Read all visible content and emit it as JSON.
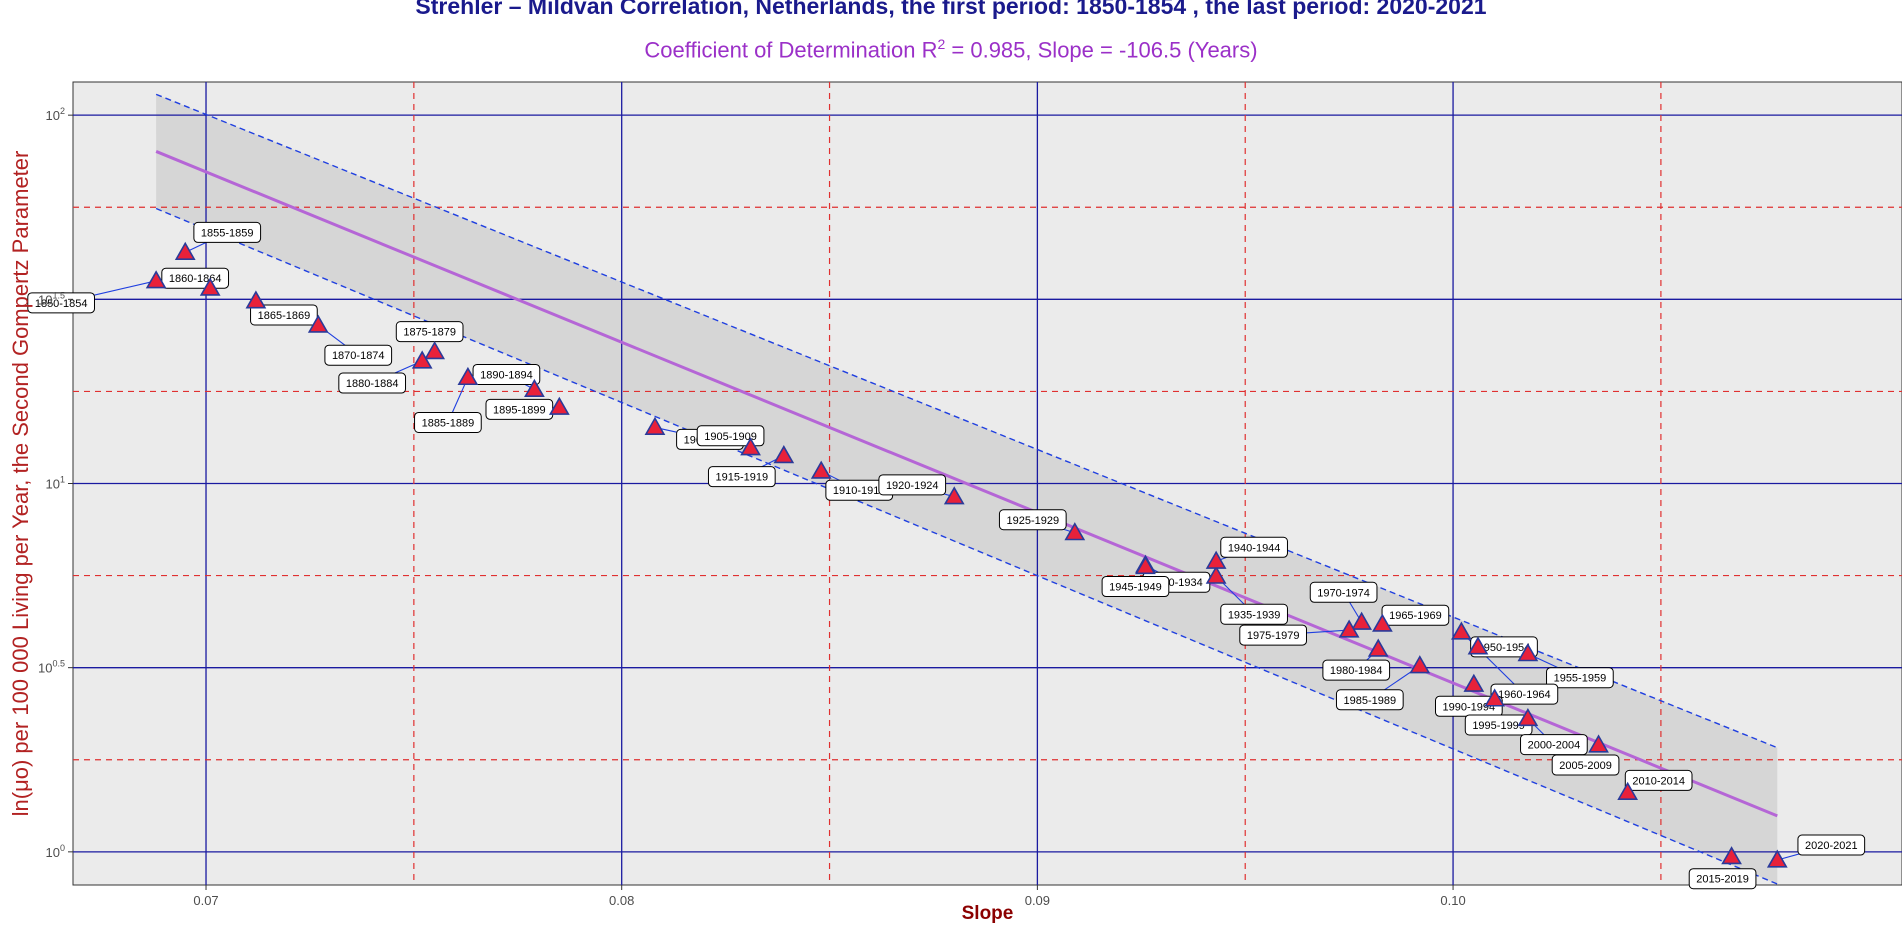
{
  "title": "Strehler – Mildvan Correlation, Netherlands,  the first period:  1850-1854 , the last period:  2020-2021",
  "subtitle": {
    "prefix": "Coefficient of Determination R",
    "sup": "2",
    "suffix": " = 0.985, Slope = -106.5  (Years)"
  },
  "colors": {
    "title": "#1a1a8c",
    "subtitle": "#9b30c8",
    "panel": "#ebebeb",
    "band": "#d6d6d6",
    "fit_line": "#b566d6",
    "band_border": "#1f3fe0",
    "major_grid": "#1a1aa0",
    "minor_grid": "#e03030",
    "marker_fill": "#e8213a",
    "marker_edge": "#2a3a9a",
    "x_title": "#8b0000",
    "y_title": "#b22222"
  },
  "chart_data": {
    "type": "scatter",
    "xlabel": "Slope",
    "ylabel": "ln(μo) per 100 000 Living per Year, the Second Gompertz Parameter",
    "xlim": [
      0.0668,
      0.1108
    ],
    "y_scale": "log10",
    "ylim_log10": [
      -0.09,
      2.09
    ],
    "x_ticks": [
      {
        "value": 0.07,
        "label": "0.07"
      },
      {
        "value": 0.08,
        "label": "0.08"
      },
      {
        "value": 0.09,
        "label": "0.09"
      },
      {
        "value": 0.1,
        "label": "0.10"
      }
    ],
    "y_ticks": [
      {
        "log": 0,
        "base": "10",
        "exp": "0"
      },
      {
        "log": 0.5,
        "base": "10",
        "exp": "0.5"
      },
      {
        "log": 1,
        "base": "10",
        "exp": "1"
      },
      {
        "log": 1.5,
        "base": "10",
        "exp": "1.5"
      },
      {
        "log": 2,
        "base": "10",
        "exp": "2"
      }
    ],
    "minor_x": [
      0.075,
      0.085,
      0.095,
      0.105
    ],
    "minor_y_log10": [
      0.25,
      0.75,
      1.25,
      1.75
    ],
    "fit": {
      "slope_log10_per_unit_x": -46.25,
      "intercept_log10": 5.0835,
      "x_range": [
        0.0688,
        0.1078
      ]
    },
    "band": {
      "halfwidth_start_log10": 0.155,
      "halfwidth_end_log10": 0.185
    },
    "points": [
      {
        "label": "1850-1854",
        "x": 0.0688,
        "y": 35.5
      },
      {
        "label": "1855-1859",
        "x": 0.0695,
        "y": 42.4
      },
      {
        "label": "1860-1864",
        "x": 0.0701,
        "y": 33.9
      },
      {
        "label": "1865-1869",
        "x": 0.0712,
        "y": 31.3
      },
      {
        "label": "1870-1874",
        "x": 0.0727,
        "y": 26.9
      },
      {
        "label": "1875-1879",
        "x": 0.0755,
        "y": 22.8
      },
      {
        "label": "1880-1884",
        "x": 0.0752,
        "y": 21.5
      },
      {
        "label": "1885-1889",
        "x": 0.0763,
        "y": 19.4
      },
      {
        "label": "1890-1894",
        "x": 0.0779,
        "y": 18.0
      },
      {
        "label": "1895-1899",
        "x": 0.0785,
        "y": 16.1
      },
      {
        "label": "1900-1904",
        "x": 0.0808,
        "y": 14.2
      },
      {
        "label": "1905-1909",
        "x": 0.0831,
        "y": 12.5
      },
      {
        "label": "1910-1914",
        "x": 0.0848,
        "y": 10.8
      },
      {
        "label": "1915-1919",
        "x": 0.0839,
        "y": 11.9
      },
      {
        "label": "1920-1924",
        "x": 0.088,
        "y": 9.2
      },
      {
        "label": "1925-1929",
        "x": 0.0909,
        "y": 7.35
      },
      {
        "label": "1930-1934",
        "x": 0.0926,
        "y": 6.0
      },
      {
        "label": "1935-1939",
        "x": 0.0943,
        "y": 5.6
      },
      {
        "label": "1940-1944",
        "x": 0.0943,
        "y": 6.15
      },
      {
        "label": "1945-1949",
        "x": 0.0926,
        "y": 5.95
      },
      {
        "label": "1950-1954",
        "x": 0.1006,
        "y": 3.6
      },
      {
        "label": "1955-1959",
        "x": 0.1018,
        "y": 3.45
      },
      {
        "label": "1960-1964",
        "x": 0.1002,
        "y": 3.95
      },
      {
        "label": "1965-1969",
        "x": 0.0983,
        "y": 4.15
      },
      {
        "label": "1970-1974",
        "x": 0.0978,
        "y": 4.2
      },
      {
        "label": "1975-1979",
        "x": 0.0975,
        "y": 4.0
      },
      {
        "label": "1980-1984",
        "x": 0.0982,
        "y": 3.55
      },
      {
        "label": "1985-1989",
        "x": 0.0992,
        "y": 3.2
      },
      {
        "label": "1990-1994",
        "x": 0.1005,
        "y": 2.85
      },
      {
        "label": "1995-1999",
        "x": 0.101,
        "y": 2.6
      },
      {
        "label": "2000-2004",
        "x": 0.1018,
        "y": 2.3
      },
      {
        "label": "2005-2009",
        "x": 0.1035,
        "y": 1.95
      },
      {
        "label": "2010-2014",
        "x": 0.1042,
        "y": 1.45
      },
      {
        "label": "2015-2019",
        "x": 0.1067,
        "y": 0.97
      },
      {
        "label": "2020-2021",
        "x": 0.1078,
        "y": 0.95
      }
    ]
  }
}
